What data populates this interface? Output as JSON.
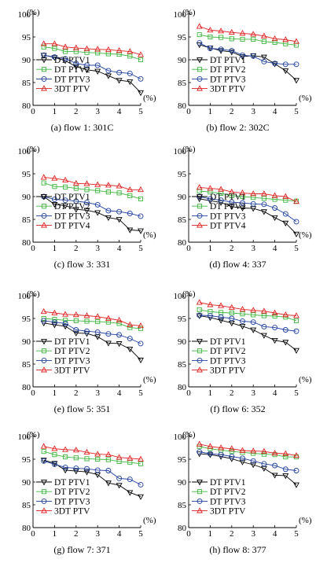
{
  "axis_labels": {
    "y_unit": "(%)",
    "x_unit": "(%)"
  },
  "chart_data": [
    {
      "type": "line",
      "caption": "(a) flow 1: 301C",
      "x": [
        0.5,
        1,
        1.5,
        2,
        2.5,
        3,
        3.5,
        4,
        4.5,
        5
      ],
      "xticks": [
        0,
        1,
        2,
        3,
        4,
        5
      ],
      "yticks": [
        80,
        85,
        90,
        95,
        100
      ],
      "ylim": [
        80,
        100
      ],
      "xlim": [
        0,
        5
      ],
      "legend_position": "lower-left",
      "series": [
        {
          "name": "DT PTV1",
          "color": "#000000",
          "marker": "triangle-down",
          "values": [
            91.0,
            90.5,
            89.8,
            88.5,
            87.8,
            87.5,
            86.5,
            85.5,
            85.2,
            82.8
          ]
        },
        {
          "name": "DT PTV2",
          "color": "#3db63d",
          "marker": "square",
          "values": [
            92.8,
            92.5,
            91.8,
            91.8,
            91.6,
            91.5,
            91.3,
            91.2,
            90.8,
            90.0
          ]
        },
        {
          "name": "DT PTV3",
          "color": "#2040a0",
          "marker": "circle",
          "values": [
            91.0,
            90.6,
            90.2,
            89.2,
            88.8,
            88.8,
            87.6,
            87.2,
            87.0,
            85.8
          ]
        },
        {
          "name": "3DT PTV",
          "color": "#e02020",
          "marker": "triangle-up",
          "values": [
            93.5,
            93.5,
            92.8,
            92.6,
            92.4,
            92.3,
            92.2,
            92.0,
            91.8,
            91.1
          ]
        }
      ]
    },
    {
      "type": "line",
      "caption": "(b) flow 2: 302C",
      "x": [
        0.5,
        1,
        1.5,
        2,
        2.5,
        3,
        3.5,
        4,
        4.5,
        5
      ],
      "xticks": [
        0,
        1,
        2,
        3,
        4,
        5
      ],
      "yticks": [
        80,
        85,
        90,
        95,
        100
      ],
      "ylim": [
        80,
        100
      ],
      "xlim": [
        0,
        5
      ],
      "legend_position": "lower-left",
      "series": [
        {
          "name": "DT PTV1",
          "color": "#000000",
          "marker": "triangle-down",
          "values": [
            93.3,
            92.6,
            92.0,
            91.7,
            90.7,
            90.9,
            90.6,
            89.1,
            87.6,
            85.5
          ]
        },
        {
          "name": "DT PTV2",
          "color": "#3db63d",
          "marker": "square",
          "values": [
            95.5,
            95.0,
            94.9,
            94.6,
            94.5,
            94.5,
            94.0,
            93.8,
            93.5,
            93.2
          ]
        },
        {
          "name": "DT PTV3",
          "color": "#2040a0",
          "marker": "circle",
          "values": [
            93.7,
            92.5,
            92.3,
            92.0,
            91.0,
            90.8,
            89.6,
            89.2,
            89.0,
            89.0
          ]
        },
        {
          "name": "3DT PTV",
          "color": "#e02020",
          "marker": "triangle-up",
          "values": [
            97.3,
            96.5,
            96.3,
            96.0,
            95.8,
            95.6,
            95.2,
            94.6,
            94.4,
            94.0
          ]
        }
      ]
    },
    {
      "type": "line",
      "caption": "(c) flow 3: 331",
      "x": [
        0.5,
        1,
        1.5,
        2,
        2.5,
        3,
        3.5,
        4,
        4.5,
        5
      ],
      "xticks": [
        0,
        1,
        2,
        3,
        4,
        5
      ],
      "yticks": [
        80,
        85,
        90,
        95,
        100
      ],
      "ylim": [
        80,
        100
      ],
      "xlim": [
        0,
        5
      ],
      "legend_position": "lower-left",
      "series": [
        {
          "name": "DT PTV1",
          "color": "#000000",
          "marker": "triangle-down",
          "values": [
            90.0,
            88.3,
            88.0,
            87.2,
            87.0,
            86.5,
            85.4,
            85.0,
            82.7,
            82.5
          ]
        },
        {
          "name": "DT PTV2",
          "color": "#3db63d",
          "marker": "square",
          "values": [
            93.0,
            92.2,
            92.1,
            91.8,
            91.5,
            91.3,
            91.0,
            90.8,
            90.2,
            89.5
          ]
        },
        {
          "name": "DT PTV3",
          "color": "#2040a0",
          "marker": "circle",
          "values": [
            90.0,
            89.4,
            89.2,
            89.0,
            88.7,
            88.2,
            86.9,
            86.7,
            86.3,
            85.7
          ]
        },
        {
          "name": "DT PTV4",
          "color": "#e02020",
          "marker": "triangle-up",
          "values": [
            94.2,
            94.0,
            93.6,
            92.9,
            92.8,
            92.6,
            92.5,
            92.3,
            91.5,
            91.5
          ]
        }
      ]
    },
    {
      "type": "line",
      "caption": "(d) flow 4: 337",
      "x": [
        0.5,
        1,
        1.5,
        2,
        2.5,
        3,
        3.5,
        4,
        4.5,
        5
      ],
      "xticks": [
        0,
        1,
        2,
        3,
        4,
        5
      ],
      "yticks": [
        80,
        85,
        90,
        95,
        100
      ],
      "ylim": [
        80,
        100
      ],
      "xlim": [
        0,
        5
      ],
      "legend_position": "lower-left",
      "series": [
        {
          "name": "DT PTV1",
          "color": "#000000",
          "marker": "triangle-down",
          "values": [
            89.5,
            89.1,
            88.7,
            87.8,
            87.5,
            87.4,
            86.7,
            85.4,
            84.2,
            81.8
          ]
        },
        {
          "name": "DT PTV2",
          "color": "#3db63d",
          "marker": "square",
          "values": [
            91.2,
            91.0,
            90.7,
            90.2,
            90.0,
            89.8,
            89.6,
            89.4,
            89.2,
            89.0
          ]
        },
        {
          "name": "DT PTV3",
          "color": "#2040a0",
          "marker": "circle",
          "values": [
            90.0,
            89.5,
            89.2,
            88.8,
            88.6,
            88.4,
            88.3,
            87.5,
            86.2,
            84.5
          ]
        },
        {
          "name": "DT PTV4",
          "color": "#e02020",
          "marker": "triangle-up",
          "values": [
            92.0,
            91.8,
            91.6,
            91.0,
            90.8,
            90.6,
            90.6,
            90.2,
            90.0,
            88.9
          ]
        }
      ]
    },
    {
      "type": "line",
      "caption": "(e) flow 5: 351",
      "x": [
        0.5,
        1,
        1.5,
        2,
        2.5,
        3,
        3.5,
        4,
        4.5,
        5
      ],
      "xticks": [
        0,
        1,
        2,
        3,
        4,
        5
      ],
      "yticks": [
        80,
        85,
        90,
        95,
        100
      ],
      "ylim": [
        80,
        100
      ],
      "xlim": [
        0,
        5
      ],
      "legend_position": "lower-left",
      "series": [
        {
          "name": "DT PTV1",
          "color": "#000000",
          "marker": "triangle-down",
          "values": [
            94.0,
            93.6,
            93.3,
            91.8,
            91.7,
            91.0,
            89.6,
            89.5,
            88.3,
            85.9
          ]
        },
        {
          "name": "DT PTV2",
          "color": "#3db63d",
          "marker": "square",
          "values": [
            95.0,
            94.8,
            94.6,
            94.5,
            94.4,
            94.3,
            94.2,
            93.9,
            93.0,
            92.8
          ]
        },
        {
          "name": "DT PTV3",
          "color": "#2040a0",
          "marker": "circle",
          "values": [
            94.5,
            94.2,
            93.9,
            92.5,
            92.2,
            92.0,
            91.6,
            91.4,
            90.6,
            89.5
          ]
        },
        {
          "name": "3DT PTV",
          "color": "#e02020",
          "marker": "triangle-up",
          "values": [
            96.5,
            96.2,
            95.9,
            95.8,
            95.6,
            95.4,
            95.0,
            94.6,
            93.6,
            93.4
          ]
        }
      ]
    },
    {
      "type": "line",
      "caption": "(f) flow 6: 352",
      "x": [
        0.5,
        1,
        1.5,
        2,
        2.5,
        3,
        3.5,
        4,
        4.5,
        5
      ],
      "xticks": [
        0,
        1,
        2,
        3,
        4,
        5
      ],
      "yticks": [
        80,
        85,
        90,
        95,
        100
      ],
      "ylim": [
        80,
        100
      ],
      "xlim": [
        0,
        5
      ],
      "legend_position": "lower-left",
      "series": [
        {
          "name": "DT PTV1",
          "color": "#000000",
          "marker": "triangle-down",
          "values": [
            95.6,
            95.2,
            94.6,
            94.0,
            93.3,
            92.5,
            91.3,
            90.2,
            89.8,
            88.0
          ]
        },
        {
          "name": "DT PTV2",
          "color": "#3db63d",
          "marker": "square",
          "values": [
            96.9,
            96.5,
            96.3,
            96.2,
            96.0,
            95.8,
            95.6,
            95.5,
            95.3,
            94.5
          ]
        },
        {
          "name": "DT PTV3",
          "color": "#2040a0",
          "marker": "circle",
          "values": [
            95.7,
            95.6,
            95.3,
            95.0,
            94.4,
            94.2,
            93.2,
            93.0,
            92.5,
            92.2
          ]
        },
        {
          "name": "3DT PTV",
          "color": "#e02020",
          "marker": "triangle-up",
          "values": [
            98.5,
            98.0,
            97.8,
            97.4,
            97.0,
            96.8,
            96.6,
            96.2,
            95.8,
            95.6
          ]
        }
      ]
    },
    {
      "type": "line",
      "caption": "(g) flow 7: 371",
      "x": [
        0.5,
        1,
        1.5,
        2,
        2.5,
        3,
        3.5,
        4,
        4.5,
        5
      ],
      "xticks": [
        0,
        1,
        2,
        3,
        4,
        5
      ],
      "yticks": [
        80,
        85,
        90,
        95,
        100
      ],
      "ylim": [
        80,
        100
      ],
      "xlim": [
        0,
        5
      ],
      "legend_position": "lower-left",
      "series": [
        {
          "name": "DT PTV1",
          "color": "#000000",
          "marker": "triangle-down",
          "values": [
            94.8,
            94.1,
            92.6,
            92.4,
            92.2,
            91.6,
            89.8,
            89.3,
            87.7,
            86.8
          ]
        },
        {
          "name": "DT PTV2",
          "color": "#3db63d",
          "marker": "square",
          "values": [
            96.7,
            96.0,
            95.5,
            95.3,
            95.1,
            95.0,
            94.9,
            94.5,
            94.3,
            94.0
          ]
        },
        {
          "name": "DT PTV3",
          "color": "#2040a0",
          "marker": "circle",
          "values": [
            94.6,
            93.9,
            93.2,
            93.0,
            92.9,
            92.6,
            92.5,
            90.8,
            90.6,
            89.4
          ]
        },
        {
          "name": "3DT PTV",
          "color": "#e02020",
          "marker": "triangle-up",
          "values": [
            97.8,
            97.3,
            97.1,
            97.0,
            96.5,
            96.1,
            96.0,
            95.4,
            95.2,
            95.0
          ]
        }
      ]
    },
    {
      "type": "line",
      "caption": "(h) flow 8: 377",
      "x": [
        0.5,
        1,
        1.5,
        2,
        2.5,
        3,
        3.5,
        4,
        4.5,
        5
      ],
      "xticks": [
        0,
        1,
        2,
        3,
        4,
        5
      ],
      "yticks": [
        80,
        85,
        90,
        95,
        100
      ],
      "ylim": [
        80,
        100
      ],
      "xlim": [
        0,
        5
      ],
      "legend_position": "lower-left",
      "series": [
        {
          "name": "DT PTV1",
          "color": "#000000",
          "marker": "triangle-down",
          "values": [
            96.2,
            96.0,
            95.6,
            95.1,
            94.4,
            93.8,
            93.0,
            91.5,
            91.4,
            89.4
          ]
        },
        {
          "name": "DT PTV2",
          "color": "#3db63d",
          "marker": "square",
          "values": [
            97.8,
            97.3,
            97.0,
            96.7,
            96.5,
            96.3,
            96.1,
            96.0,
            95.5,
            95.5
          ]
        },
        {
          "name": "DT PTV3",
          "color": "#2040a0",
          "marker": "circle",
          "values": [
            96.6,
            96.2,
            96.0,
            95.6,
            95.2,
            94.6,
            94.0,
            93.6,
            92.8,
            92.5
          ]
        },
        {
          "name": "3DT PTV",
          "color": "#e02020",
          "marker": "triangle-up",
          "values": [
            98.3,
            97.8,
            97.5,
            97.3,
            96.9,
            96.8,
            96.7,
            96.3,
            96.2,
            95.8
          ]
        }
      ]
    }
  ]
}
